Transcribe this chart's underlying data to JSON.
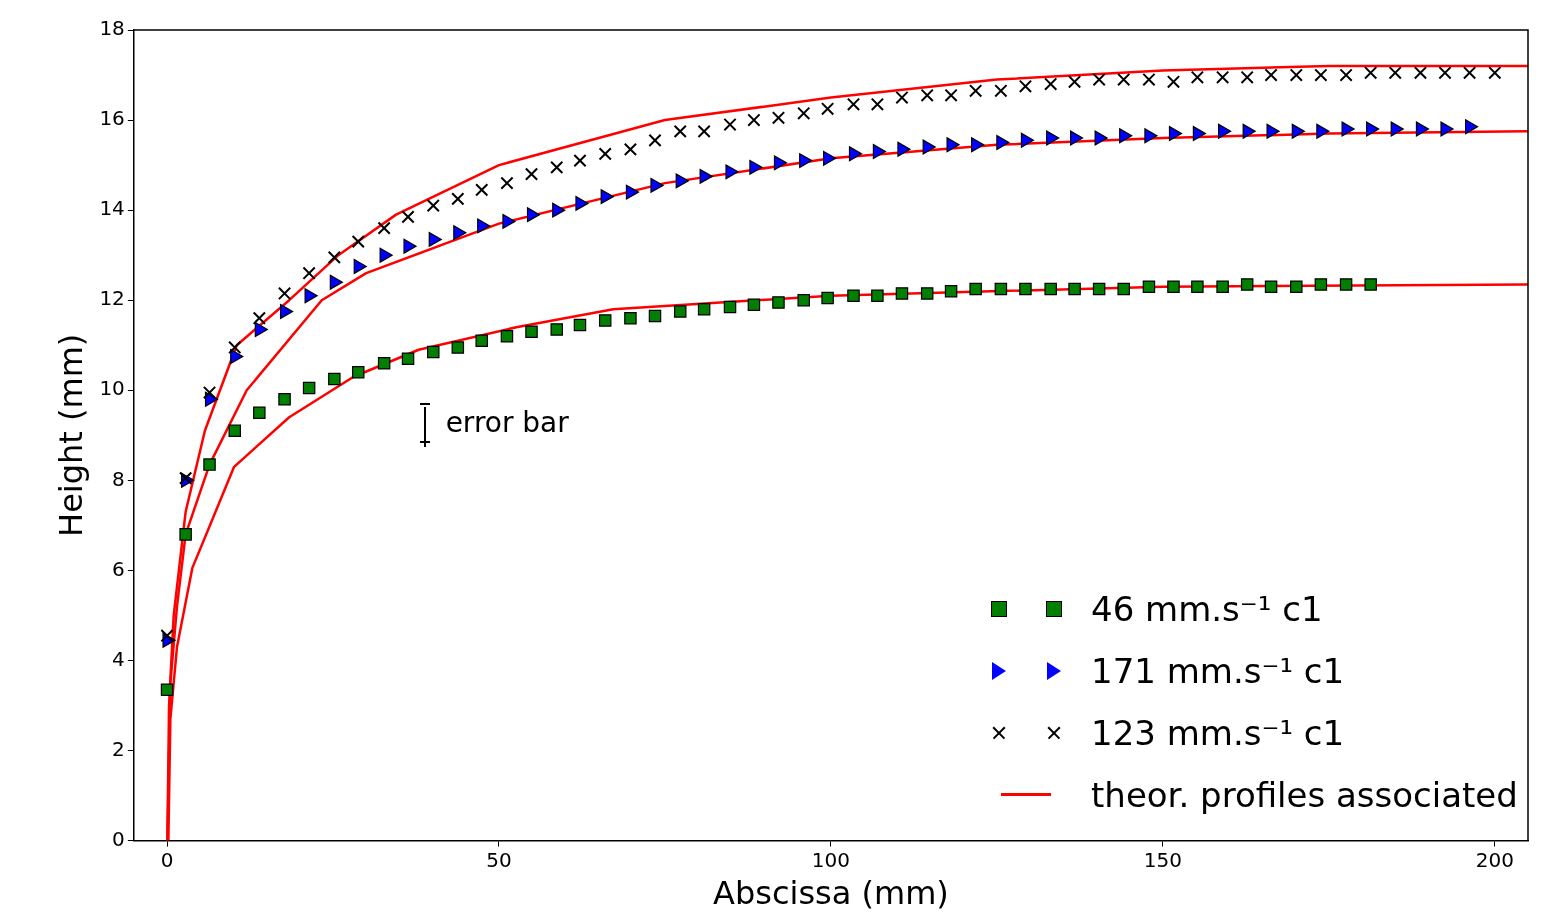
{
  "chart_data": {
    "type": "scatter",
    "xlabel": "Abscissa (mm)",
    "ylabel": "Height (mm)",
    "xlim": [
      -5,
      205
    ],
    "ylim": [
      0,
      18
    ],
    "xticks": [
      0,
      50,
      100,
      150,
      200
    ],
    "yticks": [
      0,
      2,
      4,
      6,
      8,
      10,
      12,
      14,
      16,
      18
    ],
    "grid": false,
    "legend": "bottom right",
    "annotations": [
      "error bar"
    ],
    "series": [
      {
        "name": "46 mm.s⁻¹ c1",
        "color": "#007f00",
        "marker": "square",
        "x": [
          0,
          2.8,
          6.4,
          10.2,
          13.9,
          17.7,
          21.4,
          25.2,
          28.8,
          32.7,
          36.3,
          40.1,
          43.8,
          47.4,
          51.2,
          54.9,
          58.7,
          62.2,
          66.0,
          69.8,
          73.5,
          77.3,
          80.9,
          84.8,
          88.4,
          92.1,
          95.9,
          99.5,
          103.4,
          107.0,
          110.7,
          114.5,
          118.1,
          121.8,
          125.6,
          129.3,
          133.1,
          136.7,
          140.4,
          144.1,
          147.9,
          151.6,
          155.2,
          159.0,
          162.7,
          166.3,
          170.1,
          173.8,
          177.6,
          181.3
        ],
        "values": [
          3.35,
          6.8,
          8.35,
          9.1,
          9.5,
          9.8,
          10.05,
          10.25,
          10.4,
          10.6,
          10.7,
          10.85,
          10.95,
          11.1,
          11.2,
          11.3,
          11.35,
          11.45,
          11.55,
          11.6,
          11.65,
          11.75,
          11.8,
          11.85,
          11.9,
          11.95,
          12.0,
          12.05,
          12.1,
          12.1,
          12.15,
          12.15,
          12.2,
          12.25,
          12.25,
          12.25,
          12.25,
          12.25,
          12.25,
          12.25,
          12.3,
          12.3,
          12.3,
          12.3,
          12.35,
          12.3,
          12.3,
          12.35,
          12.35,
          12.35
        ]
      },
      {
        "name": "171 mm.s⁻¹ c1",
        "color": "#0000ff",
        "marker": "triangle",
        "x": [
          0,
          2.8,
          6.4,
          10.2,
          13.9,
          17.7,
          21.4,
          25.2,
          28.8,
          32.7,
          36.3,
          40.1,
          43.8,
          47.4,
          51.2,
          54.9,
          58.7,
          62.2,
          66.0,
          69.8,
          73.5,
          77.3,
          80.9,
          84.8,
          88.4,
          92.1,
          95.9,
          99.5,
          103.4,
          107.0,
          110.7,
          114.5,
          118.1,
          121.8,
          125.6,
          129.3,
          133.1,
          136.7,
          140.4,
          144.1,
          147.9,
          151.6,
          155.2,
          159.0,
          162.7,
          166.3,
          170.1,
          173.8,
          177.6,
          181.3,
          185.0,
          188.8,
          192.5,
          196.2
        ],
        "values": [
          4.45,
          8.0,
          9.8,
          10.75,
          11.35,
          11.75,
          12.1,
          12.4,
          12.75,
          13.0,
          13.2,
          13.35,
          13.5,
          13.65,
          13.75,
          13.9,
          14.0,
          14.15,
          14.3,
          14.4,
          14.55,
          14.65,
          14.75,
          14.85,
          14.95,
          15.05,
          15.1,
          15.15,
          15.25,
          15.3,
          15.35,
          15.4,
          15.45,
          15.45,
          15.5,
          15.55,
          15.6,
          15.6,
          15.6,
          15.65,
          15.65,
          15.7,
          15.7,
          15.75,
          15.75,
          15.75,
          15.75,
          15.75,
          15.8,
          15.8,
          15.8,
          15.8,
          15.8,
          15.85
        ]
      },
      {
        "name": "123 mm.s⁻¹ c1",
        "color": "#000000",
        "marker": "cross",
        "x": [
          0,
          2.8,
          6.4,
          10.2,
          13.9,
          17.7,
          21.4,
          25.2,
          28.8,
          32.7,
          36.3,
          40.1,
          43.8,
          47.4,
          51.2,
          54.9,
          58.7,
          62.2,
          66.0,
          69.8,
          73.5,
          77.3,
          80.9,
          84.8,
          88.4,
          92.1,
          95.9,
          99.5,
          103.4,
          107.0,
          110.7,
          114.5,
          118.1,
          121.8,
          125.6,
          129.3,
          133.1,
          136.7,
          140.4,
          144.1,
          147.9,
          151.6,
          155.2,
          159.0,
          162.7,
          166.3,
          170.1,
          173.8,
          177.6,
          181.3,
          185.0,
          188.8,
          192.5,
          196.2,
          200.0
        ],
        "values": [
          4.55,
          8.05,
          9.95,
          10.95,
          11.6,
          12.15,
          12.6,
          12.95,
          13.3,
          13.6,
          13.85,
          14.1,
          14.25,
          14.45,
          14.6,
          14.8,
          14.95,
          15.1,
          15.25,
          15.35,
          15.55,
          15.75,
          15.75,
          15.9,
          16.0,
          16.05,
          16.15,
          16.25,
          16.35,
          16.35,
          16.5,
          16.55,
          16.55,
          16.65,
          16.65,
          16.75,
          16.8,
          16.85,
          16.9,
          16.9,
          16.9,
          16.85,
          16.95,
          16.95,
          16.95,
          17.0,
          17.0,
          17.0,
          17.0,
          17.05,
          17.05,
          17.05,
          17.05,
          17.05,
          17.05
        ]
      },
      {
        "name": "theor. profiles associated",
        "type": "line",
        "color": "#ff0000",
        "marker": "none",
        "line_style": "solid",
        "x": [
          0.05,
          0.3,
          1,
          2.8,
          5.7,
          10.5,
          18.4,
          25.8,
          34.5,
          50,
          75,
          100,
          125,
          150,
          175,
          205
        ],
        "values": [
          0,
          3.0,
          5.0,
          7.3,
          9.1,
          11.0,
          12.0,
          13.0,
          13.9,
          15.0,
          16.0,
          16.5,
          16.9,
          17.1,
          17.2,
          17.2
        ]
      },
      {
        "type": "line",
        "color": "#ff0000",
        "marker": "none",
        "line_style": "solid",
        "x": [
          0.05,
          0.5,
          1.5,
          2.8,
          6.4,
          12,
          23.3,
          30,
          42.7,
          50,
          75,
          100,
          125,
          150,
          175,
          205
        ],
        "values": [
          0,
          3.5,
          5.2,
          6.8,
          8.35,
          10.0,
          12.0,
          12.6,
          13.3,
          13.7,
          14.6,
          15.15,
          15.45,
          15.6,
          15.7,
          15.75
        ]
      },
      {
        "type": "line",
        "color": "#ff0000",
        "marker": "none",
        "line_style": "solid",
        "x": [
          0.2,
          0.5,
          1.5,
          3.8,
          10.1,
          18.4,
          28.1,
          37.9,
          52.6,
          67.2,
          100,
          150,
          205
        ],
        "values": [
          0,
          2.7,
          4.3,
          6.05,
          8.3,
          9.4,
          10.3,
          10.9,
          11.4,
          11.8,
          12.1,
          12.3,
          12.35
        ]
      }
    ]
  }
}
